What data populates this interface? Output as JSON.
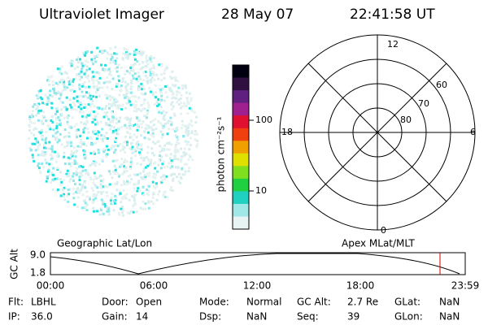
{
  "header": {
    "title": "Ultraviolet Imager",
    "date": "28 May 07",
    "time": "22:41:58 UT"
  },
  "colorbar": {
    "label": "photon cm⁻²s⁻¹",
    "ticks": [
      "100",
      "10"
    ]
  },
  "polar": {
    "mlt_labels": [
      "12",
      "18",
      "6",
      "0"
    ],
    "lat_labels": [
      "60",
      "70",
      "80"
    ]
  },
  "orbit": {
    "left_label": "Geographic Lat/Lon",
    "right_label": "Apex MLat/MLT",
    "axis_label": "GC Alt",
    "y_ticks": [
      "9.0",
      "1.8"
    ],
    "x_ticks": [
      "00:00",
      "06:00",
      "12:00",
      "18:00",
      "23:59"
    ]
  },
  "info": {
    "rows": [
      [
        [
          "Flt:",
          "LBHL"
        ],
        [
          "Door:",
          "Open"
        ],
        [
          "Mode:",
          "Normal"
        ],
        [
          "GC Alt:",
          "2.7 Re"
        ],
        [
          "GLat:",
          "NaN"
        ]
      ],
      [
        [
          "IP:",
          "36.0"
        ],
        [
          "Gain:",
          "14"
        ],
        [
          "Dsp:",
          "NaN"
        ],
        [
          "Seq:",
          "39"
        ],
        [
          "GLon:",
          "NaN"
        ]
      ]
    ]
  }
}
